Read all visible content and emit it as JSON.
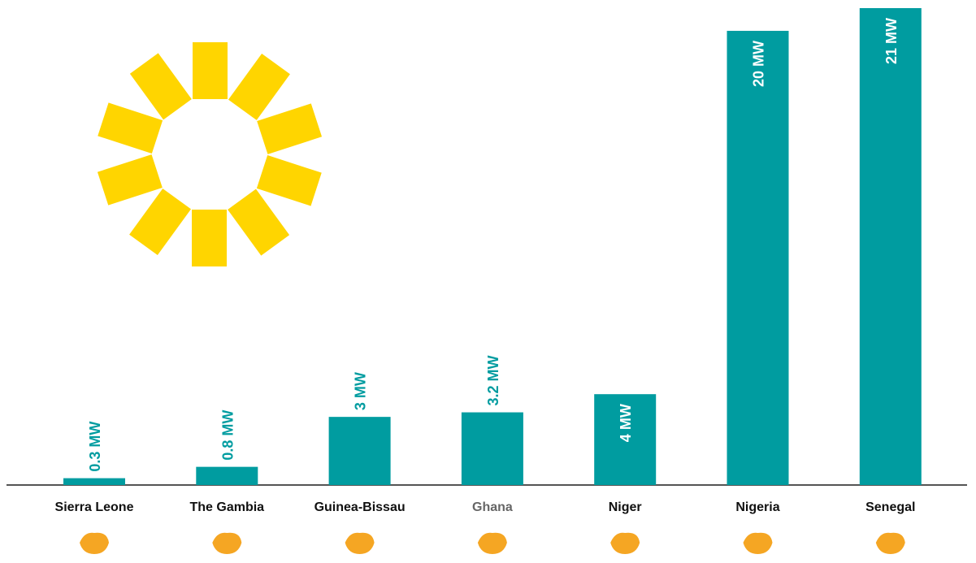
{
  "chart_data": {
    "type": "bar",
    "categories": [
      "Sierra Leone",
      "The Gambia",
      "Guinea-Bissau",
      "Ghana",
      "Niger",
      "Nigeria",
      "Senegal"
    ],
    "values": [
      0.3,
      0.8,
      3,
      3.2,
      4,
      20,
      21
    ],
    "value_labels": [
      "0.3 MW",
      "0.8 MW",
      "3 MW",
      "3.2 MW",
      "4 MW",
      "20 MW",
      "21 MW"
    ],
    "color": "#009ca0"
  }
}
